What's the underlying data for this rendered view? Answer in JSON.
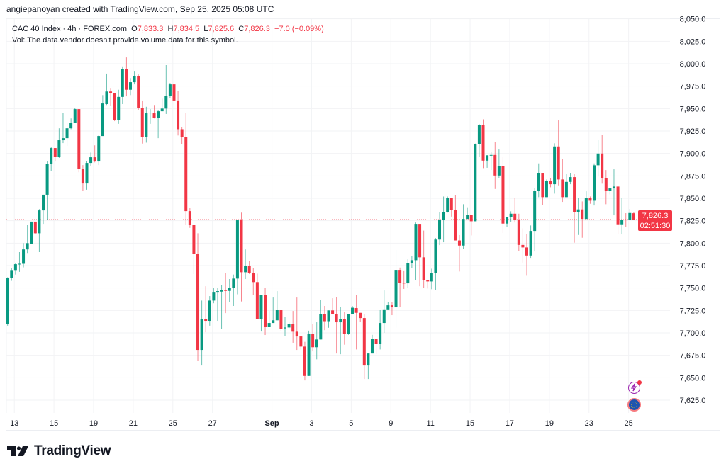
{
  "attribution": "angiepanoyan created with TradingView.com, Sep 25, 2025 05:08 UTC",
  "legend": {
    "symbol": "CAC 40 Index · 4h · FOREX.com",
    "o_label": "O",
    "o": "7,833.3",
    "h_label": "H",
    "h": "7,834.5",
    "l_label": "L",
    "l": "7,825.6",
    "c_label": "C",
    "c": "7,826.3",
    "change": "−7.0 (−0.09%)",
    "vol_note": "Vol: The data vendor doesn't provide volume data for this symbol."
  },
  "price_tag": {
    "price": "7,826.3",
    "countdown": "02:51:30"
  },
  "logo": "TradingView",
  "icons": [
    "lightning-alert-icon",
    "eu-flag-icon"
  ],
  "colors": {
    "up": "#089981",
    "down": "#f23645",
    "grid": "#f2f3f5",
    "text": "#131722"
  },
  "chart_data": {
    "type": "candlestick",
    "title": "CAC 40 Index · 4h · FOREX.com",
    "ylim": [
      7605,
      8060
    ],
    "y_ticks": [
      7625,
      7650,
      7675,
      7700,
      7725,
      7750,
      7775,
      7800,
      7825,
      7850,
      7875,
      7900,
      7925,
      7950,
      7975,
      8000,
      8025,
      8050
    ],
    "y_tick_labels": [
      "7,625.0",
      "7,650.0",
      "7,675.0",
      "7,700.0",
      "7,725.0",
      "7,750.0",
      "7,775.0",
      "7,800.0",
      "7,825.0",
      "7,850.0",
      "7,875.0",
      "7,900.0",
      "7,925.0",
      "7,950.0",
      "7,975.0",
      "8,000.0",
      "8,025.0",
      "8,050.0"
    ],
    "x_ticks": [
      {
        "bar": 1.7,
        "label": "13"
      },
      {
        "bar": 11.7,
        "label": "15"
      },
      {
        "bar": 21.7,
        "label": "19"
      },
      {
        "bar": 31.7,
        "label": "21"
      },
      {
        "bar": 41.7,
        "label": "25"
      },
      {
        "bar": 51.7,
        "label": "27"
      },
      {
        "bar": 66.7,
        "label": "Sep",
        "bold": true
      },
      {
        "bar": 76.7,
        "label": "3"
      },
      {
        "bar": 86.7,
        "label": "5"
      },
      {
        "bar": 96.7,
        "label": "9"
      },
      {
        "bar": 106.7,
        "label": "11"
      },
      {
        "bar": 116.7,
        "label": "15"
      },
      {
        "bar": 126.7,
        "label": "17"
      },
      {
        "bar": 136.7,
        "label": "19"
      },
      {
        "bar": 146.7,
        "label": "23"
      },
      {
        "bar": 156.7,
        "label": "25"
      }
    ],
    "last_price": 7826.3,
    "ohlc_fields": [
      "open",
      "high",
      "low",
      "close"
    ],
    "candles": [
      [
        7710,
        7762,
        7708,
        7761
      ],
      [
        7761,
        7772,
        7758,
        7770
      ],
      [
        7770,
        7778,
        7765,
        7776.5
      ],
      [
        7776.5,
        7790,
        7768,
        7777
      ],
      [
        7777,
        7800,
        7773,
        7793
      ],
      [
        7793,
        7820,
        7789,
        7800
      ],
      [
        7799,
        7824,
        7799,
        7824
      ],
      [
        7824,
        7824,
        7810,
        7811
      ],
      [
        7811,
        7838,
        7790,
        7836.5
      ],
      [
        7836.5,
        7854,
        7821.5,
        7854
      ],
      [
        7854,
        7891,
        7826,
        7888.6
      ],
      [
        7888.6,
        7907,
        7880.7,
        7906
      ],
      [
        7906,
        7906,
        7891,
        7896.5
      ],
      [
        7896.5,
        7928,
        7895,
        7914.7
      ],
      [
        7914.7,
        7945.5,
        7911.5,
        7917
      ],
      [
        7917,
        7933.6,
        7908.4,
        7928
      ],
      [
        7928,
        7939,
        7927,
        7934
      ],
      [
        7934,
        7951,
        7934,
        7949.4
      ],
      [
        7949.4,
        7949.4,
        7879,
        7883
      ],
      [
        7883,
        7887,
        7858,
        7866.5
      ],
      [
        7866.5,
        7891,
        7859.6,
        7889.4
      ],
      [
        7889.4,
        7901,
        7886,
        7895.7
      ],
      [
        7895.7,
        7909,
        7890,
        7891
      ],
      [
        7891,
        7921,
        7887,
        7919.4
      ],
      [
        7919.4,
        7965,
        7919.4,
        7955.7
      ],
      [
        7955,
        7989,
        7954,
        7969
      ],
      [
        7969,
        7973,
        7953,
        7967
      ],
      [
        7967,
        7967,
        7936,
        7937
      ],
      [
        7937,
        7971,
        7933,
        7963
      ],
      [
        7963,
        7997,
        7955,
        7994.4
      ],
      [
        7994.4,
        8007,
        7963.6,
        7971
      ],
      [
        7971,
        7984,
        7965,
        7979.4
      ],
      [
        7979.4,
        7992,
        7977,
        7986.5
      ],
      [
        7986.5,
        7988,
        7948,
        7951
      ],
      [
        7951,
        7959,
        7911,
        7918
      ],
      [
        7918,
        7952,
        7912,
        7944.7
      ],
      [
        7944.7,
        7949.4,
        7933,
        7945.5
      ],
      [
        7944.7,
        7954,
        7939,
        7940
      ],
      [
        7940,
        7948.6,
        7917,
        7947
      ],
      [
        7947,
        7961,
        7947,
        7950
      ],
      [
        7950,
        7998.4,
        7944,
        7964.4
      ],
      [
        7964.4,
        7978.6,
        7962,
        7977
      ],
      [
        7977,
        7980,
        7954,
        7959
      ],
      [
        7959,
        7970,
        7920,
        7927
      ],
      [
        7927,
        7929,
        7910,
        7918.6
      ],
      [
        7918.6,
        7944.7,
        7820.7,
        7835.7
      ],
      [
        7835.7,
        7839,
        7817,
        7820.7
      ],
      [
        7820.7,
        7820.7,
        7765.5,
        7788.4
      ],
      [
        7788.4,
        7811,
        7668.4,
        7681
      ],
      [
        7681,
        7736,
        7663.6,
        7715
      ],
      [
        7715,
        7752,
        7700.7,
        7713.4
      ],
      [
        7713.4,
        7741,
        7708,
        7736
      ],
      [
        7736,
        7749.7,
        7733,
        7745.7
      ],
      [
        7746,
        7750,
        7713.4,
        7746.5
      ],
      [
        7746,
        7753.6,
        7704,
        7748
      ],
      [
        7748,
        7767,
        7722,
        7746.8
      ],
      [
        7746.8,
        7760,
        7734.6,
        7750.5
      ],
      [
        7750.5,
        7765,
        7730,
        7760.5
      ],
      [
        7760.5,
        7825.5,
        7743,
        7825.5
      ],
      [
        7825.5,
        7834,
        7735,
        7767.6
      ],
      [
        7767.6,
        7793,
        7760,
        7774.3
      ],
      [
        7774.3,
        7780.5,
        7765.5,
        7766.4
      ],
      [
        7766.4,
        7772,
        7742,
        7756.6
      ],
      [
        7756.6,
        7766,
        7715,
        7715
      ],
      [
        7715,
        7742.6,
        7701.5,
        7742.6
      ],
      [
        7742.6,
        7750.5,
        7697.6,
        7707
      ],
      [
        7707,
        7724.4,
        7706.5,
        7711
      ],
      [
        7711,
        7739.4,
        7711,
        7714
      ],
      [
        7714,
        7746.5,
        7714,
        7725.8
      ],
      [
        7725.8,
        7725.8,
        7702.5,
        7704.7
      ],
      [
        7705,
        7717.5,
        7696.6,
        7706
      ],
      [
        7706,
        7712.6,
        7705,
        7709.6
      ],
      [
        7709.6,
        7724.4,
        7689,
        7701.3
      ],
      [
        7701.3,
        7739.4,
        7681,
        7696
      ],
      [
        7696,
        7696,
        7681.5,
        7684.7
      ],
      [
        7684.7,
        7690,
        7647,
        7652
      ],
      [
        7652,
        7702.5,
        7652,
        7699
      ],
      [
        7699,
        7709.6,
        7679.4,
        7684
      ],
      [
        7684,
        7711.8,
        7670.5,
        7692.6
      ],
      [
        7692.6,
        7736.8,
        7692.6,
        7721
      ],
      [
        7721,
        7730,
        7703,
        7713
      ],
      [
        7713,
        7725,
        7705.7,
        7725
      ],
      [
        7725,
        7738.6,
        7721,
        7721
      ],
      [
        7721,
        7740,
        7677,
        7711.8
      ],
      [
        7711.8,
        7729,
        7676.2,
        7715.7
      ],
      [
        7715.7,
        7723.6,
        7686.8,
        7698.6
      ],
      [
        7698.6,
        7721,
        7697.8,
        7721
      ],
      [
        7721,
        7730,
        7720.5,
        7728
      ],
      [
        7727.6,
        7742,
        7681.5,
        7722.3
      ],
      [
        7722.3,
        7722.3,
        7711.8,
        7716.5
      ],
      [
        7716.5,
        7721,
        7648.6,
        7663.6
      ],
      [
        7663.6,
        7677,
        7648.6,
        7677
      ],
      [
        7677,
        7697.8,
        7677,
        7693.4
      ],
      [
        7693.4,
        7693.4,
        7676.2,
        7687.5
      ],
      [
        7687.5,
        7725.8,
        7681.5,
        7711
      ],
      [
        7711,
        7747.3,
        7700,
        7726.2
      ],
      [
        7726.2,
        7734,
        7726.2,
        7730.7
      ],
      [
        7730.7,
        7734,
        7719.7,
        7728.4
      ],
      [
        7728.4,
        7792.5,
        7705.7,
        7770.2
      ],
      [
        7770.2,
        7772.8,
        7728.4,
        7755.8
      ],
      [
        7755.8,
        7769.6,
        7749,
        7755.2
      ],
      [
        7755.2,
        7782.8,
        7750,
        7777.6
      ],
      [
        7777.6,
        7785.5,
        7772.3,
        7781
      ],
      [
        7781,
        7823,
        7759,
        7821.5
      ],
      [
        7821.5,
        7821.5,
        7752,
        7784.2
      ],
      [
        7784.2,
        7814,
        7750.5,
        7759
      ],
      [
        7759,
        7759,
        7749.5,
        7757.3
      ],
      [
        7757.3,
        7771.5,
        7748.7,
        7767
      ],
      [
        7767,
        7805.7,
        7748,
        7804
      ],
      [
        7804,
        7834.2,
        7797.8,
        7826.3
      ],
      [
        7826.3,
        7852,
        7801,
        7834.2
      ],
      [
        7834.2,
        7852,
        7834,
        7850
      ],
      [
        7850,
        7850,
        7829.6,
        7836.8
      ],
      [
        7836.8,
        7853.3,
        7803,
        7803
      ],
      [
        7803,
        7809,
        7768.4,
        7797.3
      ],
      [
        7797.3,
        7843.4,
        7793.3,
        7827
      ],
      [
        7827,
        7840,
        7827,
        7831.5
      ],
      [
        7831.5,
        7831.5,
        7808.6,
        7824.4
      ],
      [
        7824.4,
        7911,
        7824.4,
        7910.5
      ],
      [
        7910.5,
        7932.8,
        7896,
        7931.5
      ],
      [
        7931.5,
        7938,
        7883.6,
        7892
      ],
      [
        7892,
        7897.9,
        7884,
        7897.9
      ],
      [
        7897.9,
        7901.3,
        7881.5,
        7898.3
      ],
      [
        7898.3,
        7913,
        7860.4,
        7875.4
      ],
      [
        7875.4,
        7904.4,
        7872.3,
        7886.3
      ],
      [
        7886.3,
        7896,
        7811.3,
        7821.8
      ],
      [
        7821.8,
        7829,
        7818.4,
        7829
      ],
      [
        7829,
        7835.5,
        7824,
        7832.8
      ],
      [
        7832.8,
        7850.5,
        7823,
        7825.7
      ],
      [
        7825.7,
        7832.8,
        7791.5,
        7798
      ],
      [
        7798,
        7816.5,
        7778.3,
        7795.2
      ],
      [
        7795.2,
        7810,
        7764.4,
        7786.2
      ],
      [
        7786.2,
        7819.7,
        7783.6,
        7813.6
      ],
      [
        7813.6,
        7861.8,
        7790.7,
        7858.4
      ],
      [
        7858.4,
        7888.9,
        7851.3,
        7878.4
      ],
      [
        7878.4,
        7878.4,
        7842.8,
        7851.3
      ],
      [
        7851.3,
        7871,
        7851.3,
        7869.1
      ],
      [
        7869.1,
        7872.3,
        7862.3,
        7865.7
      ],
      [
        7865.7,
        7911.3,
        7855.2,
        7907.8
      ],
      [
        7907.8,
        7936.8,
        7864.4,
        7871
      ],
      [
        7871,
        7893.9,
        7846,
        7851.3
      ],
      [
        7851.3,
        7877.6,
        7851.3,
        7868.3
      ],
      [
        7868.3,
        7878.4,
        7865.7,
        7873.6
      ],
      [
        7873.6,
        7876.8,
        7800.5,
        7834.7
      ],
      [
        7834.7,
        7850.7,
        7809.1,
        7837.6
      ],
      [
        7837.6,
        7846.5,
        7806,
        7827
      ],
      [
        7827,
        7857.8,
        7827,
        7850
      ],
      [
        7850,
        7852,
        7843.9,
        7847.3
      ],
      [
        7847.3,
        7888.9,
        7842,
        7886.8
      ],
      [
        7886.8,
        7915.2,
        7874.2,
        7899.9
      ],
      [
        7899.9,
        7920.4,
        7866.3,
        7872.3
      ],
      [
        7872.3,
        7881.5,
        7843.4,
        7858.4
      ],
      [
        7858.4,
        7861,
        7854.4,
        7861
      ],
      [
        7861,
        7882.3,
        7831,
        7863.1
      ],
      [
        7863.1,
        7864.4,
        7810.5,
        7821
      ],
      [
        7821,
        7850.7,
        7809.7,
        7826.3
      ],
      [
        7826.3,
        7833.4,
        7818.4,
        7825.7
      ],
      [
        7825.7,
        7838,
        7825.7,
        7833.6
      ],
      [
        7833.3,
        7834.5,
        7825.6,
        7826.3
      ]
    ]
  }
}
